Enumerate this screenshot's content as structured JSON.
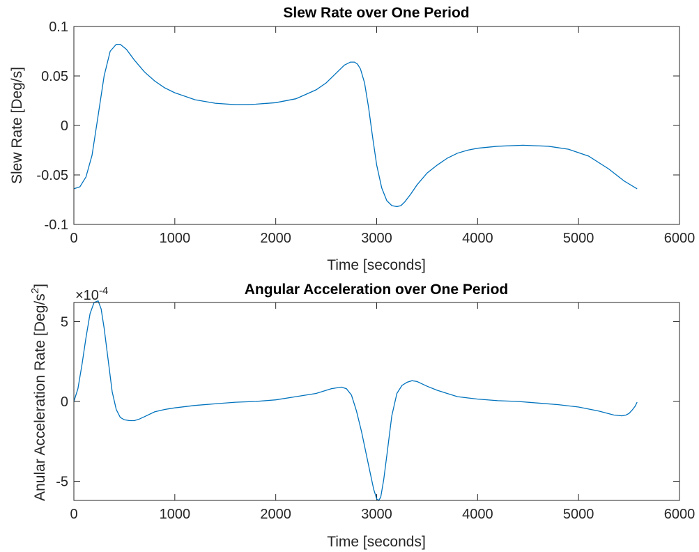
{
  "chart_data": [
    {
      "type": "line",
      "title": "Slew Rate over One Period",
      "xlabel": "Time [seconds]",
      "ylabel": "Slew Rate [Deg/s]",
      "xlim": [
        0,
        6000
      ],
      "ylim": [
        -0.1,
        0.1
      ],
      "xticks": [
        0,
        1000,
        2000,
        3000,
        4000,
        5000,
        6000
      ],
      "xtick_labels": [
        "0",
        "1000",
        "2000",
        "3000",
        "4000",
        "5000",
        "6000"
      ],
      "yticks": [
        -0.1,
        -0.05,
        0,
        0.05,
        0.1
      ],
      "ytick_labels": [
        "-0.1",
        "-0.05",
        "0",
        "0.05",
        "0.1"
      ],
      "grid": false,
      "color": "#0072BD",
      "x": [
        0,
        60,
        120,
        180,
        240,
        300,
        360,
        420,
        460,
        520,
        600,
        700,
        800,
        900,
        1000,
        1200,
        1400,
        1600,
        1700,
        1800,
        2000,
        2200,
        2400,
        2500,
        2600,
        2680,
        2740,
        2780,
        2810,
        2840,
        2880,
        2920,
        2960,
        3000,
        3050,
        3100,
        3150,
        3200,
        3240,
        3280,
        3340,
        3400,
        3500,
        3600,
        3700,
        3800,
        3900,
        4000,
        4200,
        4450,
        4700,
        4900,
        5100,
        5300,
        5450,
        5580
      ],
      "y": [
        -0.064,
        -0.062,
        -0.052,
        -0.03,
        0.01,
        0.05,
        0.075,
        0.082,
        0.082,
        0.077,
        0.066,
        0.054,
        0.045,
        0.038,
        0.033,
        0.026,
        0.0225,
        0.021,
        0.021,
        0.0215,
        0.023,
        0.027,
        0.036,
        0.043,
        0.053,
        0.061,
        0.064,
        0.064,
        0.062,
        0.057,
        0.043,
        0.018,
        -0.012,
        -0.04,
        -0.063,
        -0.076,
        -0.081,
        -0.082,
        -0.081,
        -0.077,
        -0.069,
        -0.06,
        -0.048,
        -0.04,
        -0.033,
        -0.028,
        -0.025,
        -0.023,
        -0.021,
        -0.02,
        -0.021,
        -0.024,
        -0.031,
        -0.044,
        -0.056,
        -0.064
      ]
    },
    {
      "type": "line",
      "title": "Angular Acceleration over One Period",
      "xlabel": "Time [seconds]",
      "ylabel": "Anular Acceleration Rate [Deg/s",
      "ylabel_superscript": "2",
      "ylabel_suffix": "]",
      "exponent_base": "×10",
      "exponent_power": "-4",
      "xlim": [
        0,
        6000
      ],
      "ylim": [
        -6.2,
        6.2
      ],
      "xticks": [
        0,
        1000,
        2000,
        3000,
        4000,
        5000,
        6000
      ],
      "xtick_labels": [
        "0",
        "1000",
        "2000",
        "3000",
        "4000",
        "5000",
        "6000"
      ],
      "yticks": [
        -5,
        0,
        5
      ],
      "ytick_labels": [
        "-5",
        "0",
        "5"
      ],
      "grid": false,
      "color": "#0072BD",
      "x": [
        0,
        40,
        80,
        120,
        160,
        200,
        240,
        270,
        300,
        340,
        380,
        420,
        460,
        500,
        550,
        600,
        650,
        700,
        800,
        900,
        1000,
        1200,
        1400,
        1600,
        1800,
        2000,
        2200,
        2400,
        2550,
        2650,
        2700,
        2750,
        2800,
        2850,
        2900,
        2940,
        2970,
        3000,
        3020,
        3040,
        3070,
        3100,
        3150,
        3200,
        3250,
        3300,
        3350,
        3400,
        3450,
        3500,
        3600,
        3800,
        4000,
        4200,
        4400,
        4600,
        4800,
        5000,
        5200,
        5350,
        5430,
        5470,
        5500,
        5530,
        5560,
        5580
      ],
      "y": [
        0,
        0.8,
        2.3,
        4.0,
        5.5,
        6.2,
        6.3,
        5.8,
        4.6,
        2.6,
        0.6,
        -0.5,
        -1.0,
        -1.15,
        -1.2,
        -1.2,
        -1.1,
        -0.95,
        -0.65,
        -0.5,
        -0.4,
        -0.25,
        -0.15,
        -0.05,
        0,
        0.1,
        0.3,
        0.5,
        0.8,
        0.9,
        0.8,
        0.4,
        -0.6,
        -1.9,
        -3.4,
        -4.6,
        -5.5,
        -6.1,
        -6.2,
        -6.0,
        -4.9,
        -3.4,
        -0.9,
        0.5,
        1.0,
        1.2,
        1.3,
        1.25,
        1.1,
        0.95,
        0.7,
        0.3,
        0.15,
        0.05,
        0,
        -0.1,
        -0.2,
        -0.35,
        -0.6,
        -0.85,
        -0.9,
        -0.85,
        -0.75,
        -0.55,
        -0.3,
        -0.05
      ]
    }
  ]
}
